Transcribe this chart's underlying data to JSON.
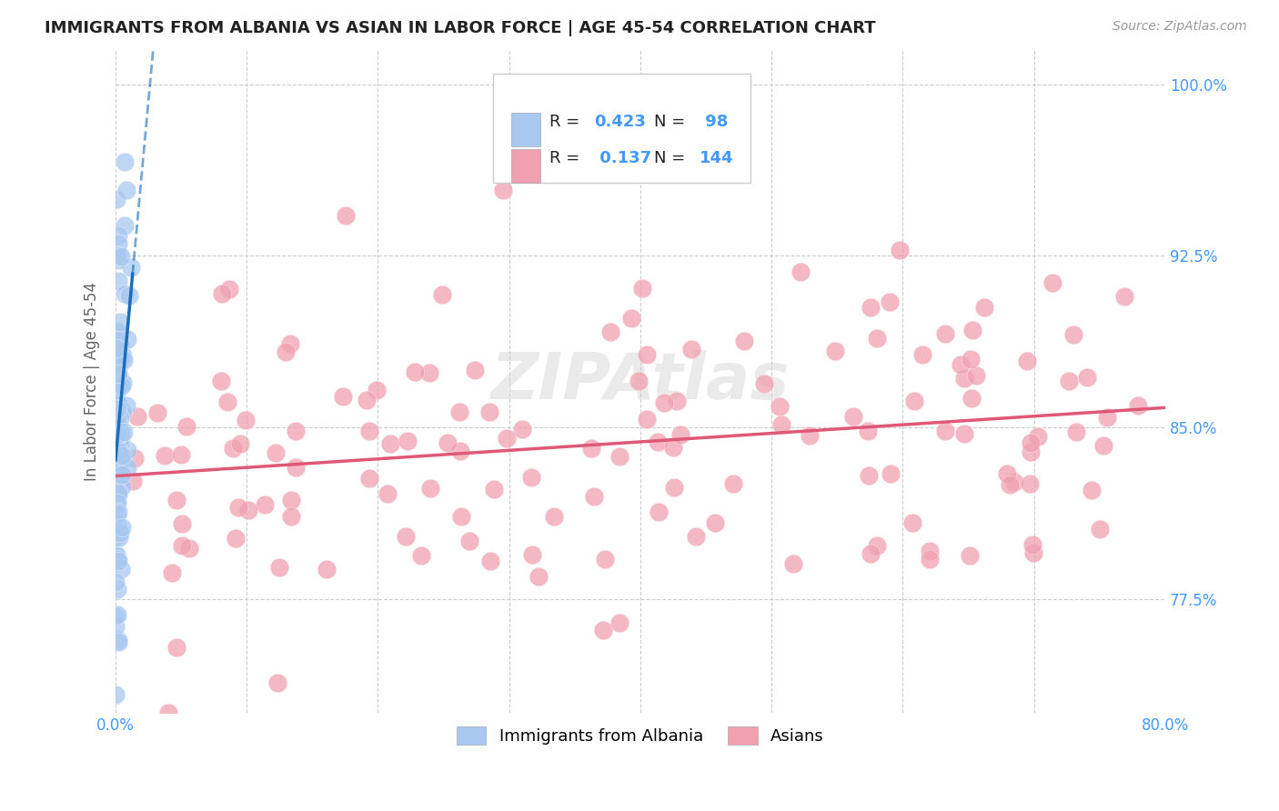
{
  "title": "IMMIGRANTS FROM ALBANIA VS ASIAN IN LABOR FORCE | AGE 45-54 CORRELATION CHART",
  "source": "Source: ZipAtlas.com",
  "ylabel": "In Labor Force | Age 45-54",
  "x_min": 0.0,
  "x_max": 0.8,
  "y_min": 0.725,
  "y_max": 1.015,
  "x_ticks": [
    0.0,
    0.1,
    0.2,
    0.3,
    0.4,
    0.5,
    0.6,
    0.7,
    0.8
  ],
  "x_tick_labels": [
    "0.0%",
    "",
    "",
    "",
    "",
    "",
    "",
    "",
    "80.0%"
  ],
  "y_ticks": [
    0.775,
    0.85,
    0.925,
    1.0
  ],
  "y_tick_labels": [
    "77.5%",
    "85.0%",
    "92.5%",
    "100.0%"
  ],
  "albania_R": 0.423,
  "albania_N": 98,
  "asian_R": 0.137,
  "asian_N": 144,
  "albania_color": "#a8c8f0",
  "albania_edge_color": "white",
  "albania_line_color": "#1a6fbd",
  "asian_color": "#f0a0b0",
  "asian_edge_color": "white",
  "asian_line_color": "#e05878",
  "grid_color": "#cccccc",
  "tick_color": "#4499ff",
  "ylabel_color": "#666666",
  "title_color": "#222222",
  "source_color": "#999999",
  "watermark_text": "ZIPAtlas",
  "legend_R_label": "R = ",
  "legend_N_label": "N = ",
  "legend_bottom_1": "Immigrants from Albania",
  "legend_bottom_2": "Asians"
}
